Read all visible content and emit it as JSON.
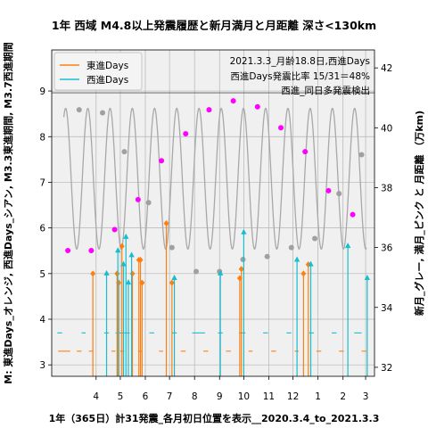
{
  "chart_data": {
    "type": "line",
    "title": "1年 西域 M4.8以上発震履歴と新月満月と月距離 深さ<130km",
    "xlabel": "1年（365日）計31発震_各月初日位置を表示__2020.3.4_to_2021.3.3",
    "ylabel_left": "M: 東進Days_オレンジ, 西進Days_シアン, M3.3東進期間, M3.7西進期間",
    "ylabel_right": "新月_グレー, 満月_ピンク と 月距離 （万km)",
    "x_ticks": [
      {
        "label": "4",
        "day": 28
      },
      {
        "label": "5",
        "day": 58
      },
      {
        "label": "6",
        "day": 89
      },
      {
        "label": "7",
        "day": 119
      },
      {
        "label": "8",
        "day": 150
      },
      {
        "label": "9",
        "day": 181
      },
      {
        "label": "10",
        "day": 211
      },
      {
        "label": "11",
        "day": 242
      },
      {
        "label": "12",
        "day": 272
      },
      {
        "label": "1",
        "day": 303
      },
      {
        "label": "2",
        "day": 334
      },
      {
        "label": "3",
        "day": 362
      }
    ],
    "xlim": [
      -27,
      373
    ],
    "ylim_left": [
      2.75,
      9.9
    ],
    "yticks_left": [
      3,
      4,
      5,
      6,
      7,
      8,
      9
    ],
    "ylim_right": [
      31.7,
      42.6
    ],
    "yticks_right": [
      32,
      34,
      36,
      38,
      40,
      42
    ],
    "grid": true,
    "legend": {
      "position": "top-left",
      "entries": [
        {
          "name": "東進Days",
          "color": "#ff7f0e"
        },
        {
          "name": "西進Days",
          "color": "#17becf"
        }
      ]
    },
    "annotations": [
      {
        "text": "2021.3.3_月齢18.8日,西進Days",
        "color": "#17a2b0"
      },
      {
        "text": "西進Days発震比率 15/31＝48%",
        "color": "#000000"
      },
      {
        "text": "西進_同日多発震検出",
        "color": "#000000"
      }
    ],
    "colors": {
      "east": "#ff7f0e",
      "west": "#17becf",
      "moon_distance": "#a8a8a8",
      "new_moon": "#a0a0a0",
      "full_moon": "#ff00ff",
      "refline": "#555555"
    },
    "moon_distance": {
      "mean": 38.3,
      "amplitude": 2.35,
      "period_days": 27.55,
      "anchor_day": 4,
      "anchor_value": 35.9
    },
    "series": [
      {
        "name": "東進Days",
        "values": [
          [
            24,
            5.0
          ],
          [
            54,
            5.0
          ],
          [
            56,
            4.8
          ],
          [
            60,
            5.6
          ],
          [
            73,
            5.0
          ],
          [
            81,
            5.3
          ],
          [
            83,
            5.3
          ],
          [
            85,
            4.8
          ],
          [
            115,
            6.1
          ],
          [
            122,
            4.8
          ],
          [
            206,
            4.9
          ],
          [
            208,
            5.1
          ],
          [
            285,
            5.0
          ],
          [
            291,
            5.2
          ]
        ]
      },
      {
        "name": "西進Days",
        "values": [
          [
            41,
            5.0
          ],
          [
            55,
            5.5
          ],
          [
            62,
            5.2
          ],
          [
            65,
            5.8
          ],
          [
            68,
            4.8
          ],
          [
            72,
            5.4
          ],
          [
            125,
            4.9
          ],
          [
            182,
            5.0
          ],
          [
            211,
            5.9
          ],
          [
            277,
            5.3
          ],
          [
            294,
            5.2
          ],
          [
            340,
            5.6
          ],
          [
            364,
            4.9
          ]
        ]
      },
      {
        "name": "新月",
        "values": [
          [
            7,
            40.6
          ],
          [
            36,
            40.5
          ],
          [
            63,
            39.2
          ],
          [
            93,
            37.5
          ],
          [
            122,
            36.0
          ],
          [
            152,
            35.2
          ],
          [
            181,
            35.2
          ],
          [
            210,
            35.6
          ],
          [
            240,
            35.7
          ],
          [
            270,
            36.0
          ],
          [
            299,
            36.3
          ],
          [
            329,
            37.8
          ],
          [
            357,
            39.1
          ]
        ]
      },
      {
        "name": "満月",
        "values": [
          [
            -7,
            35.9
          ],
          [
            22,
            35.9
          ],
          [
            51,
            36.6
          ],
          [
            80,
            37.6
          ],
          [
            109,
            38.9
          ],
          [
            139,
            39.8
          ],
          [
            168,
            40.6
          ],
          [
            198,
            40.9
          ],
          [
            228,
            40.7
          ],
          [
            257,
            40.0
          ],
          [
            287,
            39.2
          ],
          [
            316,
            37.9
          ],
          [
            346,
            37.1
          ]
        ]
      }
    ],
    "period_bars": [
      {
        "name": "M3.3東進期間",
        "level": 3.3,
        "segments": [
          [
            -19,
            -4
          ],
          [
            4,
            10
          ],
          [
            19,
            24
          ],
          [
            47,
            52
          ],
          [
            58,
            63
          ],
          [
            80,
            85
          ],
          [
            106,
            111
          ],
          [
            133,
            139
          ],
          [
            161,
            167
          ],
          [
            189,
            195
          ],
          [
            217,
            222
          ],
          [
            245,
            251
          ],
          [
            274,
            279
          ],
          [
            301,
            307
          ],
          [
            329,
            335
          ],
          [
            357,
            363
          ]
        ]
      },
      {
        "name": "M3.7西進期間",
        "level": 3.7,
        "segments": [
          [
            -20,
            -14
          ],
          [
            10,
            15
          ],
          [
            38,
            44
          ],
          [
            52,
            70
          ],
          [
            94,
            100
          ],
          [
            122,
            128
          ],
          [
            147,
            163
          ],
          [
            179,
            185
          ],
          [
            205,
            213
          ],
          [
            235,
            241
          ],
          [
            264,
            270
          ],
          [
            292,
            298
          ],
          [
            320,
            326
          ],
          [
            348,
            357
          ]
        ]
      }
    ]
  }
}
